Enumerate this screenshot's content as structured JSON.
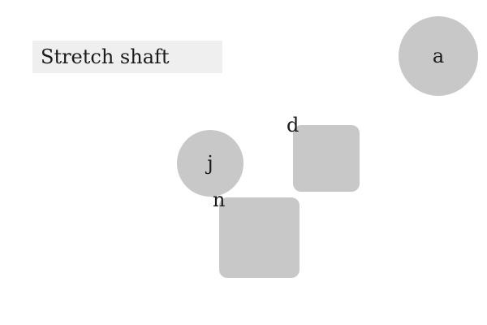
{
  "instruction": {
    "text": "Stretch shaft"
  },
  "shapes": {
    "a": {
      "label": "a",
      "kind": "circle"
    },
    "j": {
      "label": "j",
      "kind": "circle"
    },
    "d": {
      "label": "d",
      "kind": "square"
    },
    "n": {
      "label": "n",
      "kind": "square"
    }
  },
  "colors": {
    "shape_fill": "#c8c8c8",
    "title_background": "#efefef"
  }
}
